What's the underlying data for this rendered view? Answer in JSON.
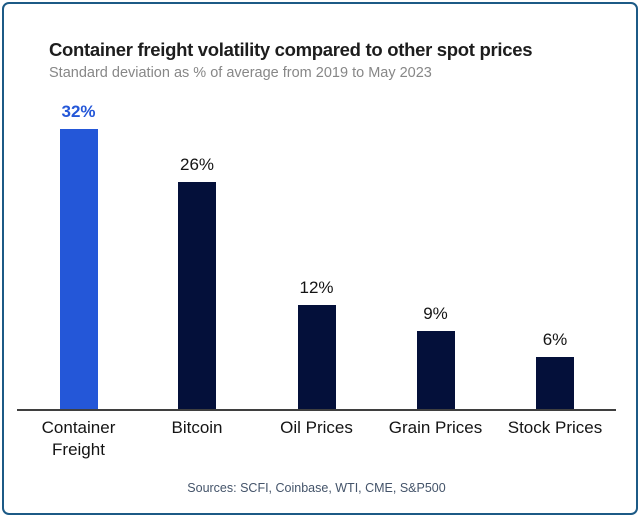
{
  "header": {
    "title": "Container freight volatility compared to other spot prices",
    "subtitle": "Standard deviation as % of average from 2019 to May 2023"
  },
  "chart_data": {
    "type": "bar",
    "title": "Container freight volatility compared to other spot prices",
    "subtitle": "Standard deviation as % of average from 2019 to May 2023",
    "categories": [
      "Container Freight",
      "Bitcoin",
      "Oil Prices",
      "Grain Prices",
      "Stock Prices"
    ],
    "values": [
      32,
      26,
      12,
      9,
      6
    ],
    "value_labels": [
      "32%",
      "26%",
      "12%",
      "9%",
      "6%"
    ],
    "ylim": [
      0,
      34
    ],
    "grid": false,
    "legend": false,
    "highlight_index": 0,
    "colors": {
      "highlight_bar": "#2457d8",
      "highlight_value_label": "#2457d8",
      "default_bar": "#04103a",
      "default_value_label": "#141414",
      "axis_line": "#3f3f3f",
      "frame_border": "#1c5a86",
      "title_text": "#1d1d1d",
      "subtitle_text": "#878787",
      "source_text": "#44546a"
    }
  },
  "footer": {
    "source_note": "Sources: SCFI, Coinbase, WTI, CME, S&P500"
  }
}
